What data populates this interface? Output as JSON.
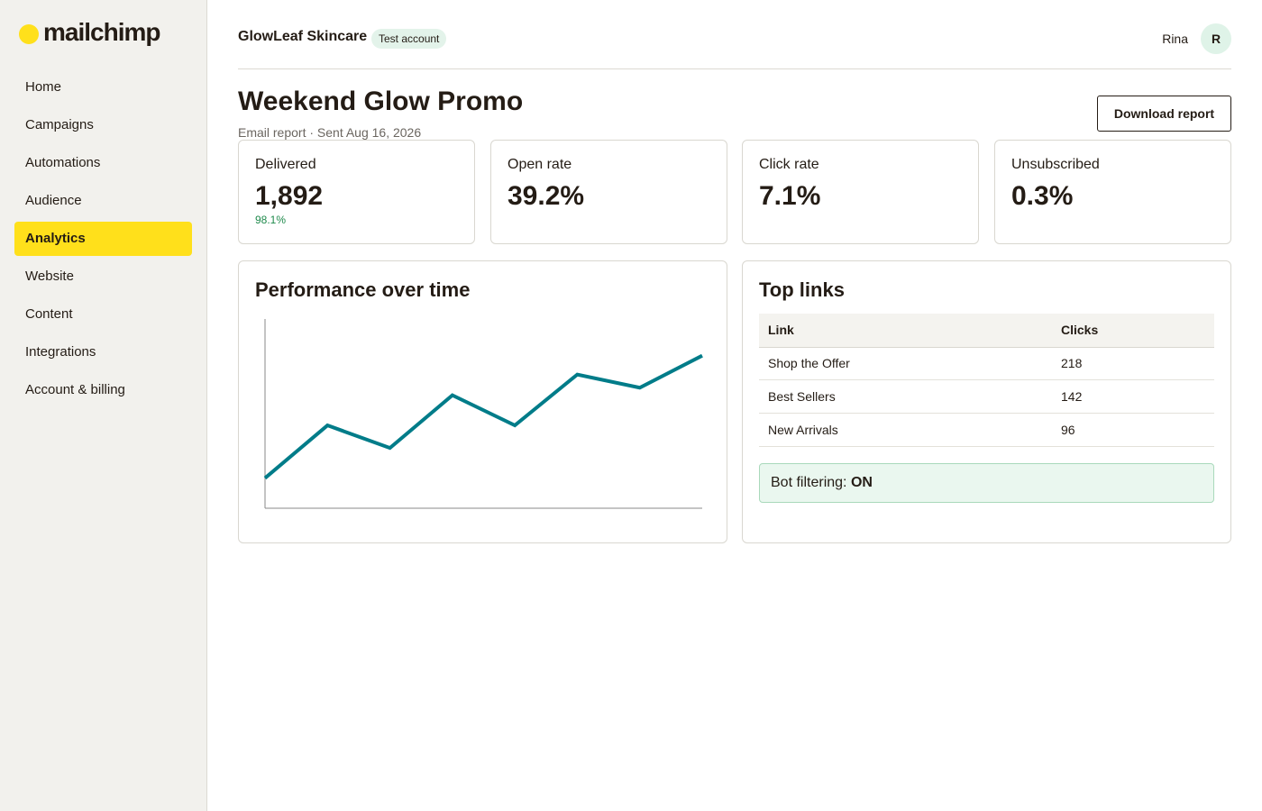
{
  "sidebar": {
    "logo": "mailchimp",
    "nav": [
      "Home",
      "Campaigns",
      "Automations",
      "Audience",
      "Analytics",
      "Website",
      "Content",
      "Integrations",
      "Account & billing"
    ],
    "active_index": 4
  },
  "header": {
    "account": "GlowLeaf Skincare",
    "badge": "Test account",
    "user": "Rina",
    "avatar": "R"
  },
  "page": {
    "title": "Weekend Glow Promo",
    "subtitle": "Email report · Sent Aug 16, 2026",
    "button": "Download report"
  },
  "stats": [
    {
      "label": "Delivered",
      "value": "1,892",
      "sub": "98.1%"
    },
    {
      "label": "Open rate",
      "value": "39.2%"
    },
    {
      "label": "Click rate",
      "value": "7.1%"
    },
    {
      "label": "Unsubscribed",
      "value": "0.3%"
    }
  ],
  "chart_data": {
    "type": "line",
    "title": "Performance over time",
    "categories": [
      null,
      null,
      null,
      null,
      null,
      null,
      null,
      null
    ],
    "values": [
      16,
      44,
      32,
      60,
      44,
      71,
      64,
      81
    ],
    "ylim": [
      0,
      100
    ],
    "color": "#007c89"
  },
  "top_links": {
    "title": "Top links",
    "columns": [
      "Link",
      "Clicks"
    ],
    "rows": [
      [
        "Shop the Offer",
        218
      ],
      [
        "Best Sellers",
        142
      ],
      [
        "New Arrivals",
        96
      ]
    ]
  },
  "bot_filter": {
    "label": "Bot filtering:",
    "state": "ON"
  }
}
